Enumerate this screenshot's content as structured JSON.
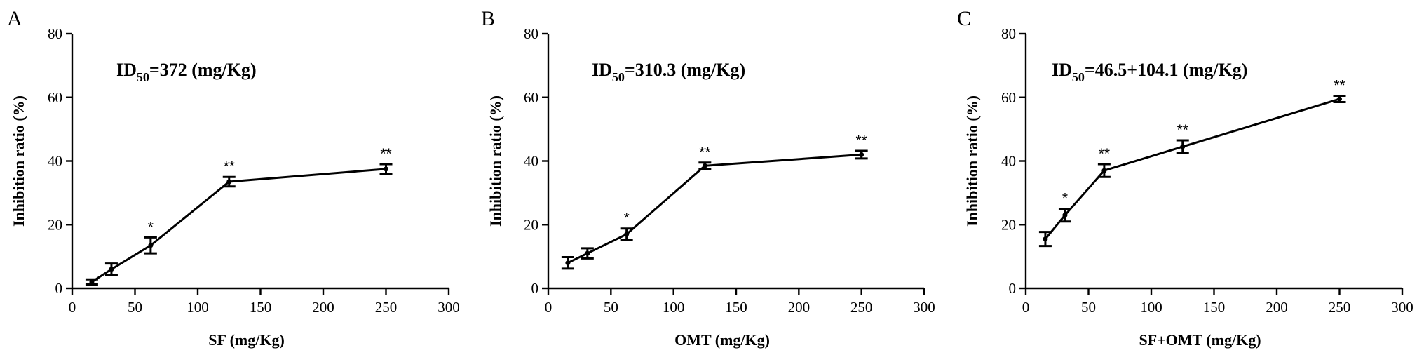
{
  "chart_data": [
    {
      "type": "line",
      "panel": "A",
      "annotation": {
        "prefix": "ID",
        "sub": "50",
        "value": "=372 (mg/Kg)"
      },
      "xlabel": "SF (mg/Kg)",
      "ylabel": "Inhibition ratio (%)",
      "xlim": [
        0,
        300
      ],
      "ylim": [
        0,
        80
      ],
      "xticks": [
        0,
        50,
        100,
        150,
        200,
        250,
        300
      ],
      "yticks": [
        0,
        20,
        40,
        60,
        80
      ],
      "x": [
        15.6,
        31.25,
        62.5,
        125,
        250
      ],
      "y": [
        2,
        6,
        13.5,
        33.5,
        37.5
      ],
      "err": [
        0.8,
        1.8,
        2.5,
        1.5,
        1.5
      ],
      "sig": [
        "",
        "",
        "*",
        "**",
        "**"
      ]
    },
    {
      "type": "line",
      "panel": "B",
      "annotation": {
        "prefix": "ID",
        "sub": "50",
        "value": "=310.3 (mg/Kg)"
      },
      "xlabel": "OMT (mg/Kg)",
      "ylabel": "Inhibition ratio (%)",
      "xlim": [
        0,
        300
      ],
      "ylim": [
        0,
        80
      ],
      "xticks": [
        0,
        50,
        100,
        150,
        200,
        250,
        300
      ],
      "yticks": [
        0,
        20,
        40,
        60,
        80
      ],
      "x": [
        15.6,
        31.25,
        62.5,
        125,
        250
      ],
      "y": [
        8,
        11,
        17,
        38.5,
        42
      ],
      "err": [
        1.8,
        1.6,
        1.8,
        1.0,
        1.2
      ],
      "sig": [
        "",
        "",
        "*",
        "**",
        "**"
      ]
    },
    {
      "type": "line",
      "panel": "C",
      "annotation": {
        "prefix": "ID",
        "sub": "50",
        "value": "=46.5+104.1 (mg/Kg)"
      },
      "xlabel": "SF+OMT (mg/Kg)",
      "ylabel": "Inhibition ratio (%)",
      "xlim": [
        0,
        300
      ],
      "ylim": [
        0,
        80
      ],
      "xticks": [
        0,
        50,
        100,
        150,
        200,
        250,
        300
      ],
      "yticks": [
        0,
        20,
        40,
        60,
        80
      ],
      "x": [
        15.6,
        31.25,
        62.5,
        125,
        250
      ],
      "y": [
        15.5,
        23,
        37,
        44.5,
        59.5
      ],
      "err": [
        2.2,
        2.0,
        2.0,
        2.0,
        1.0
      ],
      "sig": [
        "",
        "*",
        "**",
        "**",
        "**"
      ]
    }
  ]
}
